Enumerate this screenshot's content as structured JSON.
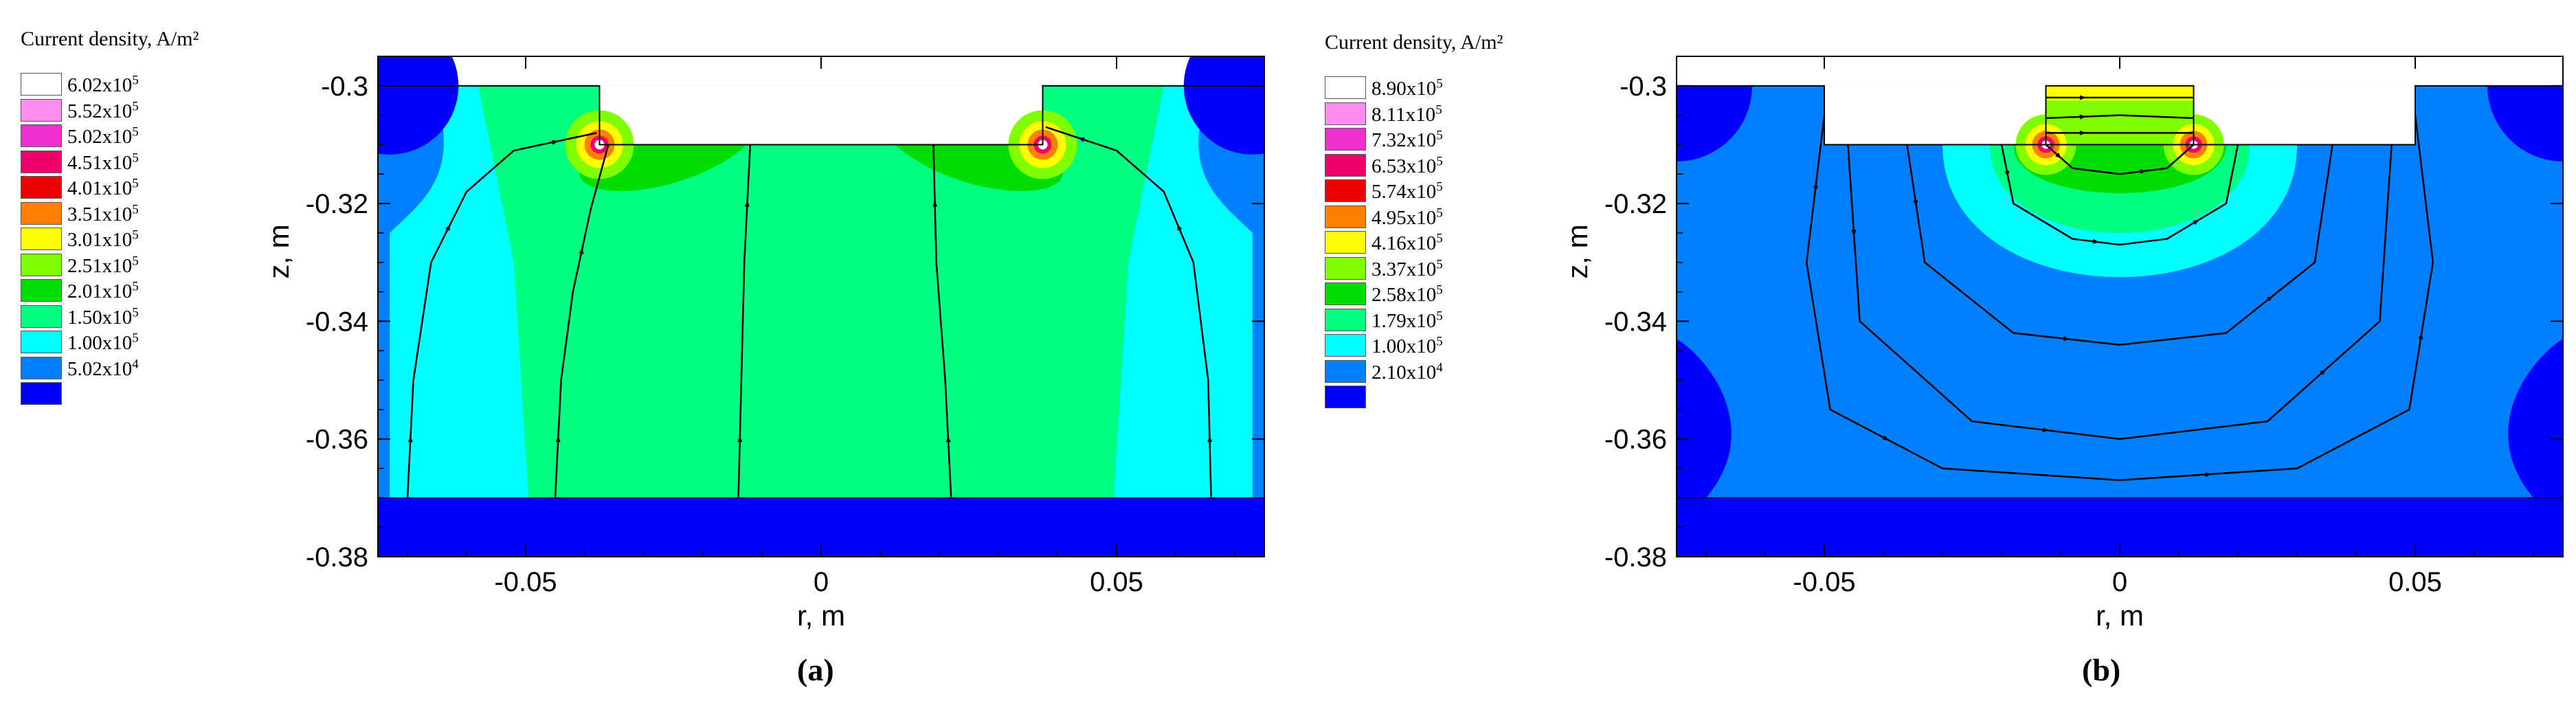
{
  "chart_data": [
    {
      "type": "heatmap",
      "panel_label": "(a)",
      "legend_title": "Current density, A/m²",
      "legend": [
        {
          "mantissa": "6.02x10",
          "exp": "5",
          "color": "#ffffff"
        },
        {
          "mantissa": "5.52x10",
          "exp": "5",
          "color": "#ff8ef0"
        },
        {
          "mantissa": "5.02x10",
          "exp": "5",
          "color": "#f02fd0"
        },
        {
          "mantissa": "4.51x10",
          "exp": "5",
          "color": "#f0006a"
        },
        {
          "mantissa": "4.01x10",
          "exp": "5",
          "color": "#f00000"
        },
        {
          "mantissa": "3.51x10",
          "exp": "5",
          "color": "#ff8000"
        },
        {
          "mantissa": "3.01x10",
          "exp": "5",
          "color": "#ffff00"
        },
        {
          "mantissa": "2.51x10",
          "exp": "5",
          "color": "#80ff00"
        },
        {
          "mantissa": "2.01x10",
          "exp": "5",
          "color": "#00dd00"
        },
        {
          "mantissa": "1.50x10",
          "exp": "5",
          "color": "#00ff80"
        },
        {
          "mantissa": "1.00x10",
          "exp": "5",
          "color": "#00ffff"
        },
        {
          "mantissa": "5.02x10",
          "exp": "4",
          "color": "#0080ff"
        },
        {
          "mantissa": "",
          "exp": "",
          "color": "#0000ff"
        }
      ],
      "xlabel": "r, m",
      "ylabel": "z, m",
      "xlim": [
        -0.075,
        0.075
      ],
      "ylim": [
        -0.38,
        -0.295
      ],
      "xticks": [
        -0.05,
        0,
        0.05
      ],
      "xtick_labels": [
        "-0.05",
        "0",
        "0.05"
      ],
      "yticks": [
        -0.3,
        -0.32,
        -0.34,
        -0.36,
        -0.38
      ],
      "ytick_labels": [
        "-0.3",
        "-0.32",
        "-0.34",
        "-0.36",
        "-0.38"
      ],
      "electrode": {
        "r_inner": -0.0375,
        "r_outer": 0.0375,
        "z_top": -0.3,
        "z_bottom": -0.31
      },
      "domain_top": -0.3,
      "bath_bottom": -0.37,
      "streamlines": [
        [
          [
            -0.07,
            -0.37
          ],
          [
            -0.069,
            -0.35
          ],
          [
            -0.066,
            -0.33
          ],
          [
            -0.06,
            -0.318
          ],
          [
            -0.052,
            -0.311
          ],
          [
            -0.038,
            -0.308
          ]
        ],
        [
          [
            -0.045,
            -0.37
          ],
          [
            -0.044,
            -0.35
          ],
          [
            -0.042,
            -0.335
          ],
          [
            -0.039,
            -0.321
          ],
          [
            -0.036,
            -0.31
          ]
        ],
        [
          [
            -0.014,
            -0.37
          ],
          [
            -0.0135,
            -0.35
          ],
          [
            -0.013,
            -0.33
          ],
          [
            -0.012,
            -0.31
          ]
        ],
        [
          [
            0.022,
            -0.37
          ],
          [
            0.021,
            -0.35
          ],
          [
            0.0195,
            -0.33
          ],
          [
            0.019,
            -0.31
          ]
        ],
        [
          [
            0.066,
            -0.37
          ],
          [
            0.0655,
            -0.35
          ],
          [
            0.063,
            -0.33
          ],
          [
            0.058,
            -0.318
          ],
          [
            0.05,
            -0.311
          ],
          [
            0.038,
            -0.307
          ]
        ]
      ]
    },
    {
      "type": "heatmap",
      "panel_label": "(b)",
      "legend_title": "Current density, A/m²",
      "legend": [
        {
          "mantissa": "8.90x10",
          "exp": "5",
          "color": "#ffffff"
        },
        {
          "mantissa": "8.11x10",
          "exp": "5",
          "color": "#ff8ef0"
        },
        {
          "mantissa": "7.32x10",
          "exp": "5",
          "color": "#f02fd0"
        },
        {
          "mantissa": "6.53x10",
          "exp": "5",
          "color": "#f0006a"
        },
        {
          "mantissa": "5.74x10",
          "exp": "5",
          "color": "#f00000"
        },
        {
          "mantissa": "4.95x10",
          "exp": "5",
          "color": "#ff8000"
        },
        {
          "mantissa": "4.16x10",
          "exp": "5",
          "color": "#ffff00"
        },
        {
          "mantissa": "3.37x10",
          "exp": "5",
          "color": "#80ff00"
        },
        {
          "mantissa": "2.58x10",
          "exp": "5",
          "color": "#00dd00"
        },
        {
          "mantissa": "1.79x10",
          "exp": "5",
          "color": "#00ff80"
        },
        {
          "mantissa": "1.00x10",
          "exp": "5",
          "color": "#00ffff"
        },
        {
          "mantissa": "2.10x10",
          "exp": "4",
          "color": "#0080ff"
        },
        {
          "mantissa": "",
          "exp": "",
          "color": "#0000ff"
        }
      ],
      "xlabel": "r, m",
      "ylabel": "z, m",
      "xlim": [
        -0.075,
        0.075
      ],
      "ylim": [
        -0.38,
        -0.295
      ],
      "xticks": [
        -0.05,
        0,
        0.05
      ],
      "xtick_labels": [
        "-0.05",
        "0",
        "0.05"
      ],
      "yticks": [
        -0.3,
        -0.32,
        -0.34,
        -0.36,
        -0.38
      ],
      "ytick_labels": [
        "-0.3",
        "-0.32",
        "-0.34",
        "-0.36",
        "-0.38"
      ],
      "recess": {
        "r_left": -0.05,
        "r_right": 0.05,
        "z_top": -0.3,
        "z_bottom": -0.31
      },
      "electrode": {
        "r_inner": -0.0125,
        "r_outer": 0.0125,
        "z_top": -0.3,
        "z_bottom": -0.31
      },
      "domain_top": -0.3,
      "bath_bottom": -0.37,
      "streamlines": [
        [
          [
            -0.05,
            -0.305
          ],
          [
            -0.053,
            -0.33
          ],
          [
            -0.049,
            -0.355
          ],
          [
            -0.03,
            -0.365
          ],
          [
            0,
            -0.367
          ],
          [
            0.03,
            -0.365
          ],
          [
            0.049,
            -0.355
          ],
          [
            0.053,
            -0.33
          ],
          [
            0.05,
            -0.305
          ]
        ],
        [
          [
            -0.046,
            -0.31
          ],
          [
            -0.044,
            -0.34
          ],
          [
            -0.025,
            -0.357
          ],
          [
            0,
            -0.36
          ],
          [
            0.025,
            -0.357
          ],
          [
            0.044,
            -0.34
          ],
          [
            0.046,
            -0.31
          ]
        ],
        [
          [
            -0.036,
            -0.31
          ],
          [
            -0.033,
            -0.33
          ],
          [
            -0.018,
            -0.342
          ],
          [
            0,
            -0.344
          ],
          [
            0.018,
            -0.342
          ],
          [
            0.033,
            -0.33
          ],
          [
            0.036,
            -0.31
          ]
        ],
        [
          [
            -0.02,
            -0.31
          ],
          [
            -0.018,
            -0.32
          ],
          [
            -0.008,
            -0.326
          ],
          [
            0,
            -0.327
          ],
          [
            0.008,
            -0.326
          ],
          [
            0.018,
            -0.32
          ],
          [
            0.02,
            -0.31
          ]
        ],
        [
          [
            -0.0125,
            -0.31
          ],
          [
            -0.008,
            -0.314
          ],
          [
            0,
            -0.315
          ],
          [
            0.008,
            -0.314
          ],
          [
            0.0125,
            -0.31
          ]
        ],
        [
          [
            -0.0125,
            -0.3055
          ],
          [
            0,
            -0.305
          ],
          [
            0.0125,
            -0.3055
          ]
        ],
        [
          [
            -0.0125,
            -0.302
          ],
          [
            0,
            -0.302
          ],
          [
            0.0125,
            -0.302
          ]
        ],
        [
          [
            -0.0125,
            -0.308
          ],
          [
            0,
            -0.308
          ],
          [
            0.0125,
            -0.308
          ]
        ]
      ]
    }
  ]
}
